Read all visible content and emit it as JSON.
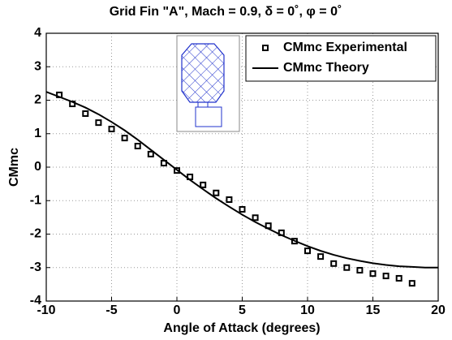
{
  "chart_data": {
    "type": "line",
    "title": "Grid Fin \"A\", Mach = 0.9, δ = 0˚, φ = 0˚",
    "x_label": "Angle of Attack (degrees)",
    "y_label": "CMmc",
    "xlim": [
      -10,
      20
    ],
    "xticks": [
      -10,
      -5,
      0,
      5,
      10,
      15,
      20
    ],
    "ylim": [
      -4,
      4
    ],
    "yticks": [
      -4,
      -3,
      -2,
      -1,
      0,
      1,
      2,
      3,
      4
    ],
    "grid": true,
    "legend": "upper right",
    "series": [
      {
        "name": "CMmc Experimental",
        "color": "#000000",
        "marker": "square",
        "x": [
          -9,
          -8,
          -7,
          -6,
          -5,
          -4,
          -3,
          -2,
          -1,
          0,
          1,
          2,
          3,
          4,
          5,
          6,
          7,
          8,
          9,
          10,
          11,
          12,
          13,
          14,
          15,
          16,
          17,
          18
        ],
        "values": [
          2.16,
          1.89,
          1.6,
          1.33,
          1.14,
          0.87,
          0.63,
          0.39,
          0.12,
          -0.1,
          -0.29,
          -0.53,
          -0.77,
          -0.97,
          -1.26,
          -1.51,
          -1.75,
          -1.96,
          -2.21,
          -2.5,
          -2.67,
          -2.88,
          -3.0,
          -3.08,
          -3.18,
          -3.25,
          -3.32,
          -3.47
        ]
      },
      {
        "name": "CMmc Theory",
        "color": "#000000",
        "marker": "none",
        "x": [
          -10,
          -9,
          -8,
          -7,
          -6,
          -5,
          -4,
          -3,
          -2,
          -1,
          0,
          1,
          2,
          3,
          4,
          5,
          6,
          7,
          8,
          9,
          10,
          11,
          12,
          13,
          14,
          15,
          16,
          17,
          18,
          19,
          20
        ],
        "values": [
          2.25,
          2.1,
          1.95,
          1.78,
          1.58,
          1.35,
          1.1,
          0.82,
          0.52,
          0.22,
          -0.08,
          -0.38,
          -0.66,
          -0.93,
          -1.18,
          -1.42,
          -1.64,
          -1.84,
          -2.03,
          -2.2,
          -2.36,
          -2.5,
          -2.62,
          -2.72,
          -2.8,
          -2.87,
          -2.92,
          -2.96,
          -2.98,
          -3.0,
          -3.0
        ]
      }
    ]
  }
}
